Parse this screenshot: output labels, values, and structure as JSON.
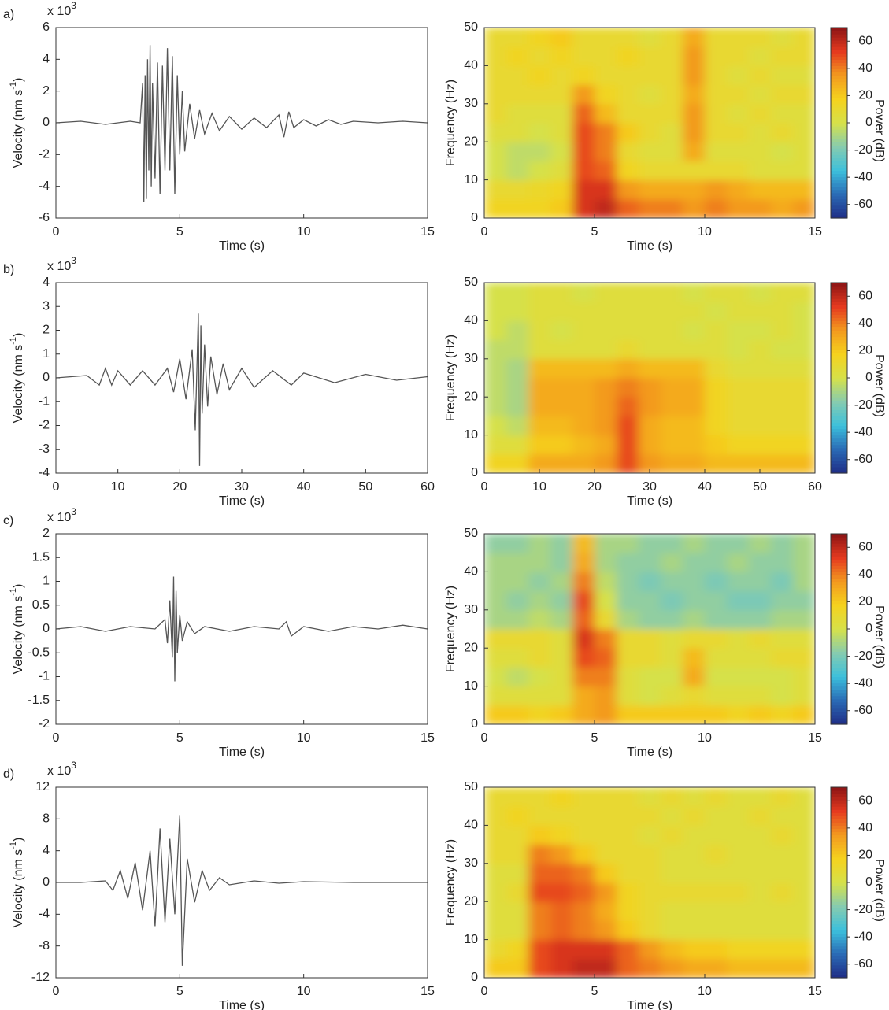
{
  "chart_data": [
    {
      "type": "line",
      "panel_label": "a)",
      "y_multiplier": "x 10",
      "y_multiplier_exponent": 3,
      "ylabel": "Velocity (nm s",
      "ylabel_exponent": -1,
      "ylabel_end": ")",
      "xlabel": "Time (s)",
      "color": "#555555",
      "xlim": [
        0,
        15
      ],
      "ylim": [
        -6,
        6
      ],
      "xticks": [
        0,
        5,
        10,
        15
      ],
      "yticks": [
        6,
        4,
        2,
        0,
        -2,
        -4,
        -6
      ],
      "x": [
        0,
        1,
        2,
        3,
        3.4,
        3.5,
        3.55,
        3.6,
        3.65,
        3.7,
        3.75,
        3.8,
        3.85,
        3.9,
        4.0,
        4.1,
        4.2,
        4.3,
        4.4,
        4.5,
        4.6,
        4.7,
        4.8,
        4.9,
        5.0,
        5.1,
        5.2,
        5.4,
        5.6,
        5.8,
        6.0,
        6.3,
        6.6,
        7.0,
        7.5,
        8.0,
        8.5,
        9.0,
        9.2,
        9.4,
        9.6,
        10,
        10.5,
        11,
        11.5,
        12,
        13,
        14,
        15
      ],
      "values": [
        0,
        0.1,
        -0.1,
        0.1,
        0,
        2.5,
        -5,
        3,
        -4.8,
        4,
        -3,
        4.9,
        -4,
        2.5,
        -3.5,
        3.8,
        -4.5,
        3.6,
        -3,
        4.7,
        -3,
        4.2,
        -4.5,
        3,
        -2,
        2,
        -1.8,
        1.2,
        -1,
        0.8,
        -0.7,
        0.6,
        -0.5,
        0.4,
        -0.4,
        0.3,
        -0.3,
        0.5,
        -0.9,
        0.7,
        -0.3,
        0.2,
        -0.2,
        0.2,
        -0.1,
        0.1,
        0,
        0.1,
        0
      ]
    },
    {
      "type": "heatmap",
      "xlabel": "Time (s)",
      "ylabel": "Frequency (Hz)",
      "zlabel": "Power (dB)",
      "xlim": [
        0,
        15
      ],
      "ylim": [
        0,
        50
      ],
      "xticks": [
        0,
        5,
        10,
        15
      ],
      "yticks": [
        0,
        10,
        20,
        30,
        40,
        50
      ],
      "zlim": [
        -70,
        70
      ],
      "zticks": [
        60,
        40,
        20,
        0,
        -20,
        -40,
        -60
      ],
      "colormap": [
        "#1f2d86",
        "#2a6ab5",
        "#3cc0dc",
        "#86cbb0",
        "#d6e14a",
        "#f5d21e",
        "#f39a1f",
        "#e53a1f",
        "#8c1515"
      ],
      "z": [
        [
          15,
          15,
          15,
          20,
          55,
          60,
          45,
          40,
          40,
          35,
          40,
          35,
          35,
          30,
          35
        ],
        [
          10,
          10,
          12,
          15,
          55,
          55,
          35,
          30,
          30,
          30,
          35,
          30,
          25,
          25,
          25
        ],
        [
          0,
          -5,
          0,
          5,
          50,
          45,
          15,
          10,
          10,
          10,
          10,
          10,
          5,
          5,
          5
        ],
        [
          0,
          -5,
          -5,
          0,
          50,
          40,
          10,
          5,
          5,
          30,
          5,
          5,
          5,
          0,
          5
        ],
        [
          5,
          5,
          0,
          5,
          50,
          40,
          20,
          10,
          5,
          35,
          10,
          10,
          5,
          10,
          5
        ],
        [
          10,
          5,
          5,
          5,
          45,
          25,
          10,
          10,
          10,
          35,
          10,
          5,
          10,
          5,
          5
        ],
        [
          10,
          10,
          10,
          10,
          35,
          15,
          10,
          5,
          10,
          30,
          10,
          10,
          5,
          10,
          10
        ],
        [
          10,
          10,
          15,
          10,
          15,
          10,
          10,
          10,
          10,
          35,
          10,
          5,
          10,
          5,
          5
        ],
        [
          10,
          15,
          10,
          15,
          10,
          10,
          15,
          10,
          10,
          35,
          10,
          10,
          5,
          10,
          10
        ],
        [
          10,
          10,
          15,
          20,
          10,
          10,
          10,
          5,
          10,
          30,
          10,
          10,
          10,
          5,
          10
        ]
      ]
    },
    {
      "type": "line",
      "panel_label": "b)",
      "y_multiplier": "x 10",
      "y_multiplier_exponent": 3,
      "ylabel": "Velocity (nm s",
      "ylabel_exponent": -1,
      "ylabel_end": ")",
      "xlabel": "Time (s)",
      "color": "#555555",
      "xlim": [
        0,
        60
      ],
      "ylim": [
        -4,
        4
      ],
      "xticks": [
        0,
        10,
        20,
        30,
        40,
        50,
        60
      ],
      "yticks": [
        4,
        3,
        2,
        1,
        0,
        -1,
        -2,
        -3,
        -4
      ],
      "x": [
        0,
        5,
        7,
        8,
        9,
        10,
        12,
        14,
        16,
        18,
        19,
        20,
        21,
        22,
        22.5,
        23,
        23.2,
        23.4,
        23.6,
        24,
        24.5,
        25,
        26,
        27,
        28,
        30,
        32,
        35,
        38,
        40,
        45,
        50,
        55,
        60
      ],
      "values": [
        0,
        0.1,
        -0.3,
        0.4,
        -0.3,
        0.3,
        -0.3,
        0.3,
        -0.3,
        0.4,
        -0.6,
        0.8,
        -0.9,
        1.2,
        -2.2,
        2.7,
        -3.7,
        2.2,
        -1.5,
        1.4,
        -1.2,
        0.9,
        -0.7,
        0.6,
        -0.5,
        0.4,
        -0.4,
        0.3,
        -0.3,
        0.2,
        -0.2,
        0.15,
        -0.1,
        0.05
      ]
    },
    {
      "type": "heatmap",
      "xlabel": "Time (s)",
      "ylabel": "Frequency (Hz)",
      "zlabel": "Power (dB)",
      "xlim": [
        0,
        60
      ],
      "ylim": [
        0,
        50
      ],
      "xticks": [
        0,
        10,
        20,
        30,
        40,
        50,
        60
      ],
      "yticks": [
        0,
        10,
        20,
        30,
        40,
        50
      ],
      "zlim": [
        -70,
        70
      ],
      "zticks": [
        60,
        40,
        20,
        0,
        -20,
        -40,
        -60
      ],
      "colormap": [
        "#1f2d86",
        "#2a6ab5",
        "#3cc0dc",
        "#86cbb0",
        "#d6e14a",
        "#f5d21e",
        "#f39a1f",
        "#e53a1f",
        "#8c1515"
      ],
      "z": [
        [
          15,
          15,
          30,
          30,
          30,
          35,
          50,
          35,
          30,
          30,
          25,
          25,
          25,
          25,
          25
        ],
        [
          5,
          5,
          20,
          20,
          25,
          30,
          50,
          30,
          25,
          25,
          20,
          15,
          15,
          15,
          15
        ],
        [
          0,
          -5,
          25,
          25,
          30,
          35,
          50,
          30,
          25,
          25,
          15,
          10,
          10,
          10,
          10
        ],
        [
          -5,
          -10,
          30,
          30,
          30,
          35,
          45,
          35,
          30,
          30,
          15,
          10,
          10,
          10,
          10
        ],
        [
          -5,
          -10,
          30,
          30,
          30,
          35,
          40,
          35,
          30,
          30,
          15,
          10,
          10,
          10,
          10
        ],
        [
          -5,
          -10,
          25,
          25,
          25,
          25,
          30,
          25,
          25,
          25,
          10,
          5,
          5,
          5,
          5
        ],
        [
          -5,
          -5,
          5,
          5,
          5,
          5,
          10,
          5,
          5,
          5,
          5,
          0,
          5,
          0,
          0
        ],
        [
          0,
          -5,
          5,
          0,
          5,
          5,
          5,
          5,
          5,
          0,
          5,
          0,
          0,
          5,
          0
        ],
        [
          0,
          0,
          5,
          5,
          5,
          5,
          5,
          5,
          5,
          5,
          0,
          5,
          5,
          5,
          0
        ],
        [
          0,
          0,
          5,
          5,
          0,
          5,
          5,
          5,
          5,
          0,
          5,
          5,
          0,
          5,
          5
        ]
      ]
    },
    {
      "type": "line",
      "panel_label": "c)",
      "y_multiplier": "x 10",
      "y_multiplier_exponent": 3,
      "ylabel": "Velocity (nm s",
      "ylabel_exponent": -1,
      "ylabel_end": ")",
      "xlabel": "Time (s)",
      "color": "#555555",
      "xlim": [
        0,
        15
      ],
      "ylim": [
        -2,
        2
      ],
      "xticks": [
        0,
        5,
        10,
        15
      ],
      "yticks": [
        2,
        1.5,
        1,
        0.5,
        0,
        -0.5,
        -1,
        -1.5,
        -2
      ],
      "x": [
        0,
        1,
        2,
        3,
        4,
        4.4,
        4.5,
        4.6,
        4.7,
        4.75,
        4.8,
        4.85,
        4.9,
        5.0,
        5.1,
        5.3,
        5.6,
        6,
        7,
        8,
        9,
        9.3,
        9.5,
        10,
        11,
        12,
        13,
        14,
        15
      ],
      "values": [
        0,
        0.05,
        -0.05,
        0.05,
        0,
        0.2,
        -0.3,
        0.6,
        -0.6,
        1.1,
        -1.1,
        0.8,
        -0.5,
        0.3,
        -0.25,
        0.15,
        -0.1,
        0.05,
        -0.05,
        0.05,
        0,
        0.15,
        -0.15,
        0.05,
        -0.05,
        0.05,
        0,
        0.08,
        0
      ]
    },
    {
      "type": "heatmap",
      "xlabel": "Time (s)",
      "ylabel": "Frequency (Hz)",
      "zlabel": "Power (dB)",
      "xlim": [
        0,
        15
      ],
      "ylim": [
        0,
        50
      ],
      "xticks": [
        0,
        5,
        10,
        15
      ],
      "yticks": [
        0,
        10,
        20,
        30,
        40,
        50
      ],
      "zlim": [
        -70,
        70
      ],
      "zticks": [
        60,
        40,
        20,
        0,
        -20,
        -40,
        -60
      ],
      "colormap": [
        "#1f2d86",
        "#2a6ab5",
        "#3cc0dc",
        "#86cbb0",
        "#d6e14a",
        "#f5d21e",
        "#f39a1f",
        "#e53a1f",
        "#8c1515"
      ],
      "z": [
        [
          20,
          20,
          15,
          20,
          30,
          35,
          20,
          20,
          20,
          20,
          20,
          15,
          20,
          15,
          20
        ],
        [
          5,
          5,
          5,
          5,
          30,
          35,
          5,
          0,
          5,
          10,
          5,
          5,
          5,
          0,
          5
        ],
        [
          0,
          -5,
          0,
          5,
          40,
          40,
          5,
          0,
          0,
          30,
          0,
          0,
          0,
          0,
          5
        ],
        [
          5,
          5,
          10,
          5,
          50,
          45,
          10,
          10,
          5,
          25,
          5,
          5,
          5,
          10,
          10
        ],
        [
          10,
          10,
          10,
          5,
          55,
          40,
          10,
          10,
          5,
          10,
          10,
          5,
          10,
          5,
          5
        ],
        [
          -10,
          -10,
          -5,
          -10,
          45,
          10,
          -10,
          -15,
          -15,
          -10,
          -15,
          -15,
          -15,
          -10,
          -10
        ],
        [
          -10,
          -15,
          -10,
          -15,
          50,
          0,
          -15,
          -15,
          -20,
          -15,
          -15,
          -20,
          -20,
          -15,
          -15
        ],
        [
          -10,
          -10,
          -15,
          -10,
          40,
          -5,
          -15,
          -20,
          -15,
          -15,
          -20,
          -15,
          -15,
          -20,
          -10
        ],
        [
          -10,
          -10,
          -10,
          -15,
          30,
          -10,
          -15,
          -15,
          -10,
          -15,
          -15,
          -10,
          -15,
          -15,
          -10
        ],
        [
          -15,
          -15,
          -10,
          -15,
          25,
          -10,
          -10,
          -15,
          -15,
          -10,
          -15,
          -15,
          -10,
          -15,
          -10
        ]
      ]
    },
    {
      "type": "line",
      "panel_label": "d)",
      "y_multiplier": "x 10",
      "y_multiplier_exponent": 3,
      "ylabel": "Velocity (nm s",
      "ylabel_exponent": -1,
      "ylabel_end": ")",
      "xlabel": "Time (s)",
      "color": "#555555",
      "xlim": [
        0,
        15
      ],
      "ylim": [
        -12,
        12
      ],
      "xticks": [
        0,
        5,
        10,
        15
      ],
      "yticks": [
        12,
        8,
        4,
        0,
        -4,
        -8,
        -12
      ],
      "x": [
        0,
        1,
        2,
        2.3,
        2.6,
        2.9,
        3.2,
        3.5,
        3.8,
        4.0,
        4.2,
        4.4,
        4.6,
        4.8,
        5.0,
        5.1,
        5.3,
        5.6,
        5.9,
        6.2,
        6.6,
        7,
        8,
        9,
        10,
        12,
        15
      ],
      "values": [
        0,
        0,
        0.2,
        -1,
        1.5,
        -2,
        2.5,
        -3.5,
        4,
        -5.5,
        6.8,
        -5,
        5.5,
        -4,
        8.5,
        -10.5,
        3,
        -2.5,
        1.5,
        -1,
        0.6,
        -0.3,
        0.2,
        -0.1,
        0.1,
        0,
        0
      ]
    },
    {
      "type": "heatmap",
      "xlabel": "Time (s)",
      "ylabel": "Frequency (Hz)",
      "zlabel": "Power (dB)",
      "xlim": [
        0,
        15
      ],
      "ylim": [
        0,
        50
      ],
      "xticks": [
        0,
        5,
        10,
        15
      ],
      "yticks": [
        0,
        10,
        20,
        30,
        40,
        50
      ],
      "zlim": [
        -70,
        70
      ],
      "zticks": [
        60,
        40,
        20,
        0,
        -20,
        -40,
        -60
      ],
      "colormap": [
        "#1f2d86",
        "#2a6ab5",
        "#3cc0dc",
        "#86cbb0",
        "#d6e14a",
        "#f5d21e",
        "#f39a1f",
        "#e53a1f",
        "#8c1515"
      ],
      "z": [
        [
          20,
          20,
          50,
          55,
          60,
          60,
          45,
          40,
          35,
          30,
          30,
          25,
          25,
          25,
          25
        ],
        [
          10,
          15,
          50,
          55,
          55,
          55,
          45,
          35,
          25,
          20,
          20,
          15,
          15,
          15,
          15
        ],
        [
          5,
          5,
          40,
          45,
          40,
          35,
          20,
          10,
          5,
          5,
          5,
          5,
          5,
          5,
          5
        ],
        [
          5,
          5,
          40,
          45,
          40,
          30,
          15,
          10,
          5,
          5,
          5,
          5,
          5,
          5,
          5
        ],
        [
          5,
          10,
          50,
          50,
          45,
          35,
          15,
          10,
          10,
          10,
          10,
          10,
          5,
          10,
          5
        ],
        [
          5,
          5,
          45,
          45,
          40,
          20,
          10,
          10,
          5,
          5,
          5,
          5,
          5,
          5,
          5
        ],
        [
          10,
          10,
          40,
          35,
          20,
          10,
          10,
          10,
          5,
          5,
          10,
          5,
          5,
          5,
          5
        ],
        [
          10,
          10,
          20,
          15,
          10,
          10,
          10,
          5,
          10,
          5,
          5,
          5,
          5,
          10,
          5
        ],
        [
          10,
          15,
          10,
          10,
          10,
          10,
          10,
          10,
          5,
          10,
          5,
          5,
          10,
          5,
          5
        ],
        [
          10,
          10,
          10,
          15,
          10,
          10,
          10,
          5,
          10,
          5,
          10,
          5,
          5,
          10,
          5
        ]
      ]
    }
  ]
}
